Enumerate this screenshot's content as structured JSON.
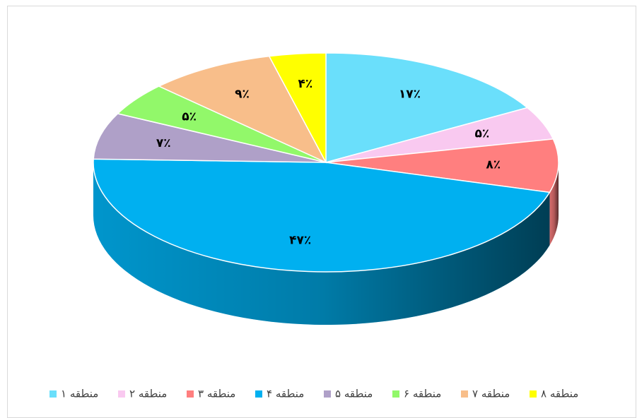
{
  "chart_data": {
    "type": "pie3d",
    "categories": [
      "منطقه ۱",
      "منطقه ۲",
      "منطقه ۳",
      "منطقه ۴",
      "منطقه ۵",
      "منطقه ۶",
      "منطقه ۷",
      "منطقه ۸"
    ],
    "values": [
      17,
      5,
      8,
      47,
      7,
      5,
      9,
      4
    ],
    "value_labels": [
      "۱۷٪",
      "۵٪",
      "۸٪",
      "۴۷٪",
      "۷٪",
      "۵٪",
      "۹٪",
      "۴٪"
    ],
    "colors": [
      "#6adffb",
      "#f9c9f0",
      "#ff7f7f",
      "#00b0f0",
      "#afa0c8",
      "#92f86a",
      "#f8be8a",
      "#ffff00"
    ],
    "legend": "bottom"
  }
}
